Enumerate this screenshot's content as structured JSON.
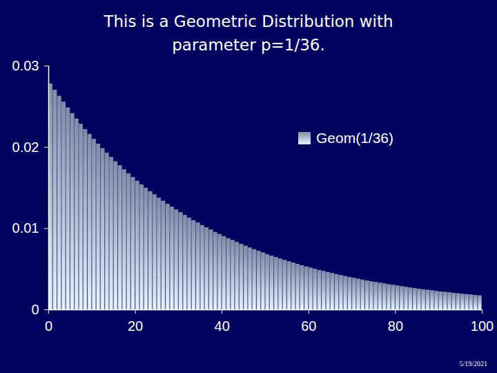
{
  "chart_data": {
    "type": "bar",
    "title": "This is a Geometric Distribution with parameter p=1/36.",
    "x": [
      0,
      1,
      2,
      3,
      4,
      5,
      6,
      7,
      8,
      9,
      10,
      11,
      12,
      13,
      14,
      15,
      16,
      17,
      18,
      19,
      20,
      21,
      22,
      23,
      24,
      25,
      26,
      27,
      28,
      29,
      30,
      31,
      32,
      33,
      34,
      35,
      36,
      37,
      38,
      39,
      40,
      41,
      42,
      43,
      44,
      45,
      46,
      47,
      48,
      49,
      50,
      51,
      52,
      53,
      54,
      55,
      56,
      57,
      58,
      59,
      60,
      61,
      62,
      63,
      64,
      65,
      66,
      67,
      68,
      69,
      70,
      71,
      72,
      73,
      74,
      75,
      76,
      77,
      78,
      79,
      80,
      81,
      82,
      83,
      84,
      85,
      86,
      87,
      88,
      89,
      90,
      91,
      92,
      93,
      94,
      95,
      96,
      97,
      98,
      99
    ],
    "series": [
      {
        "name": "Geom(1/36)",
        "values": [
          0.02778,
          0.02701,
          0.02626,
          0.02553,
          0.02482,
          0.02413,
          0.02346,
          0.02281,
          0.02217,
          0.02156,
          0.02096,
          0.02038,
          0.01981,
          0.01926,
          0.01872,
          0.0182,
          0.0177,
          0.01721,
          0.01673,
          0.01626,
          0.01581,
          0.01537,
          0.01495,
          0.01453,
          0.01413,
          0.01374,
          0.01335,
          0.01298,
          0.01262,
          0.01227,
          0.01193,
          0.0116,
          0.01128,
          0.01096,
          0.01066,
          0.01036,
          0.01008,
          0.0098,
          0.00952,
          0.00926,
          0.009,
          0.00875,
          0.00851,
          0.00827,
          0.00804,
          0.00782,
          0.0076,
          0.00739,
          0.00719,
          0.00699,
          0.00679,
          0.0066,
          0.00642,
          0.00624,
          0.00607,
          0.0059,
          0.00574,
          0.00558,
          0.00542,
          0.00527,
          0.00512,
          0.00498,
          0.00484,
          0.00471,
          0.00458,
          0.00445,
          0.00433,
          0.00421,
          0.00409,
          0.00398,
          0.00387,
          0.00376,
          0.00365,
          0.00355,
          0.00345,
          0.00336,
          0.00327,
          0.00317,
          0.00309,
          0.003,
          0.00292,
          0.00284,
          0.00276,
          0.00268,
          0.00261,
          0.00253,
          0.00246,
          0.0024,
          0.00233,
          0.00226,
          0.0022,
          0.00214,
          0.00208,
          0.00202,
          0.00197,
          0.00191,
          0.00186,
          0.00181,
          0.00176,
          0.00171
        ]
      }
    ],
    "xlim": [
      0,
      100
    ],
    "xticks": [
      0,
      20,
      40,
      60,
      80,
      100
    ],
    "ylim": [
      0,
      0.03
    ],
    "yticks": [
      0,
      0.01,
      0.02,
      0.03
    ],
    "grid": false,
    "legend": "right",
    "annotations": [
      "5/19/2021"
    ]
  }
}
